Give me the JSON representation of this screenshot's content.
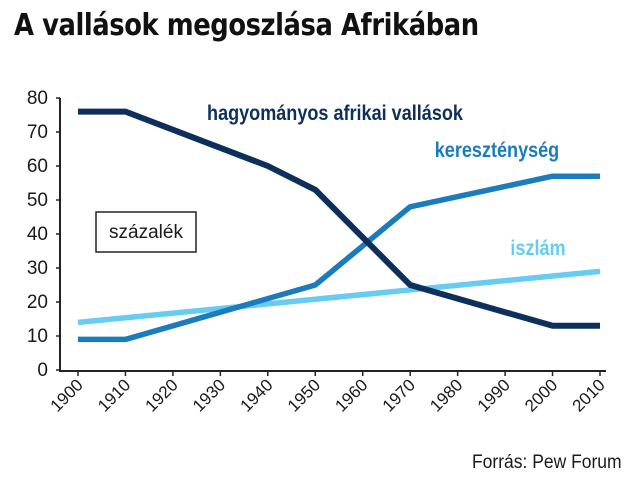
{
  "title": "A vallások megoszlása Afrikában",
  "source": "Forrás: Pew Forum",
  "chart_data": {
    "type": "line",
    "x": [
      1900,
      1910,
      1920,
      1930,
      1940,
      1950,
      1960,
      1970,
      1980,
      1990,
      2000,
      2010
    ],
    "xticks": [
      "1900",
      "1910",
      "1920",
      "1930",
      "1940",
      "1950",
      "1960",
      "1970",
      "1980",
      "1990",
      "2000",
      "2010"
    ],
    "ylim": [
      0,
      80
    ],
    "yticks": [
      "0",
      "10",
      "20",
      "30",
      "40",
      "50",
      "60",
      "70",
      "80"
    ],
    "grid": false,
    "unit_box": "százalék",
    "series": [
      {
        "name": "hagyományos afrikai vallások",
        "color": "#0c2f5c",
        "x": [
          1900,
          1910,
          1940,
          1950,
          1970,
          2000,
          2010
        ],
        "y": [
          76,
          76,
          60,
          53,
          25,
          13,
          13
        ]
      },
      {
        "name": "kereszténység",
        "color": "#1a7cbd",
        "x": [
          1900,
          1910,
          1950,
          1970,
          2000,
          2010
        ],
        "y": [
          9,
          9,
          25,
          48,
          57,
          57
        ]
      },
      {
        "name": "iszlám",
        "color": "#66ccf2",
        "x": [
          1900,
          2010
        ],
        "y": [
          14,
          29
        ]
      }
    ]
  }
}
